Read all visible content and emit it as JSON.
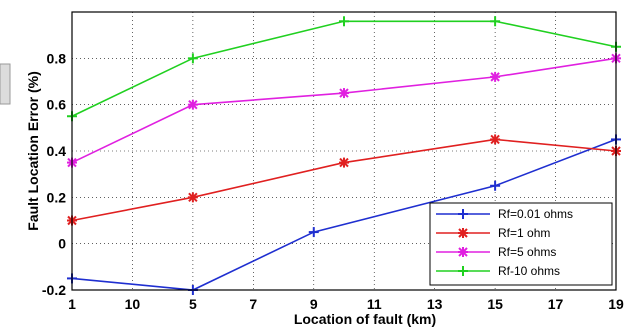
{
  "chart_data": {
    "type": "line",
    "xlabel": "Location of fault (km)",
    "ylabel": "Fault Location Error (%)",
    "xlim": [
      1,
      19
    ],
    "ylim": [
      -0.2,
      1.0
    ],
    "x_ticks": [
      "1",
      "10",
      "5",
      "7",
      "9",
      "11",
      "13",
      "15",
      "17",
      "19"
    ],
    "y_ticks": [
      "-0.2",
      "0",
      "0.2",
      "0.4",
      "0.6",
      "0.8"
    ],
    "grid": true,
    "legend_position": "bottom-right",
    "series": [
      {
        "name": "Rf=0.01 ohms",
        "color": "#1f2fd0",
        "marker": "plus",
        "x": [
          1,
          5,
          9,
          15,
          19
        ],
        "y": [
          -0.15,
          -0.2,
          0.05,
          0.25,
          0.45
        ]
      },
      {
        "name": "Rf=1 ohm",
        "color": "#e02020",
        "marker": "star",
        "x": [
          1,
          5,
          10,
          15,
          19
        ],
        "y": [
          0.1,
          0.2,
          0.35,
          0.45,
          0.4
        ]
      },
      {
        "name": "Rf=5 ohms",
        "color": "#e020e0",
        "marker": "star",
        "x": [
          1,
          5,
          10,
          15,
          19
        ],
        "y": [
          0.35,
          0.6,
          0.65,
          0.72,
          0.8
        ]
      },
      {
        "name": "Rf-10 ohms",
        "color": "#20d020",
        "marker": "plus",
        "x": [
          1,
          5,
          10,
          15,
          19
        ],
        "y": [
          0.55,
          0.8,
          0.96,
          0.96,
          0.85
        ]
      }
    ]
  }
}
